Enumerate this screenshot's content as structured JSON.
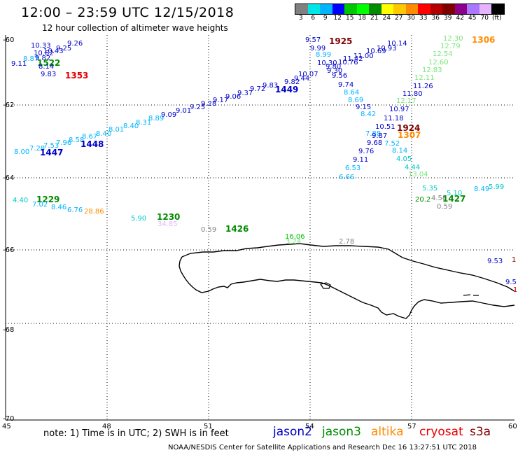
{
  "header": {
    "title": "12:00 – 23:59 UTC 12/15/2018",
    "subtitle": "12 hour collection of altimeter wave heights"
  },
  "legend": {
    "colors": [
      "#808080",
      "#00e6e6",
      "#00b4ff",
      "#0000ff",
      "#00c800",
      "#00ff00",
      "#008c00",
      "#ffff00",
      "#ffc800",
      "#ff8c00",
      "#ff0000",
      "#b40000",
      "#800000",
      "#8c008c",
      "#aa78ff",
      "#e6b4ff",
      "#000000"
    ],
    "labels": [
      "3",
      "6",
      "9",
      "12",
      "15",
      "18",
      "21",
      "24",
      "27",
      "30",
      "33",
      "36",
      "39",
      "42",
      "45",
      "70",
      "(ft)"
    ]
  },
  "axes": {
    "lat_labels": [
      "-60",
      "-62",
      "-64",
      "-66",
      "-68",
      "-70"
    ],
    "lon_labels": [
      "45",
      "48",
      "51",
      "54",
      "57",
      "60"
    ]
  },
  "points": [
    {
      "t": "10.33",
      "c": "#0000c8"
    },
    {
      "t": "9.25",
      "c": "#0000c8"
    },
    {
      "t": "9.26",
      "c": "#0000c8"
    },
    {
      "t": "10.43",
      "c": "#0000c8"
    },
    {
      "t": "10.62",
      "c": "#0000c8"
    },
    {
      "t": "8.87",
      "c": "#00b4ff"
    },
    {
      "t": "9.82",
      "c": "#0000c8"
    },
    {
      "t": "9.11",
      "c": "#0000c8"
    },
    {
      "t": "1522",
      "c": "#008c00"
    },
    {
      "t": "8.14",
      "c": "#0000c8"
    },
    {
      "t": "9.83",
      "c": "#0000c8"
    },
    {
      "t": "1353",
      "c": "#e60000"
    },
    {
      "t": "9.57",
      "c": "#0000c8"
    },
    {
      "t": "1925",
      "c": "#800000"
    },
    {
      "t": "9.99",
      "c": "#0000c8"
    },
    {
      "t": "8.99",
      "c": "#00b4ff"
    },
    {
      "t": "10.14",
      "c": "#0000c8"
    },
    {
      "t": "10.93",
      "c": "#0000c8"
    },
    {
      "t": "10.69",
      "c": "#0000c8"
    },
    {
      "t": "11.00",
      "c": "#0000c8"
    },
    {
      "t": "11.42",
      "c": "#0000c8"
    },
    {
      "t": "10.76",
      "c": "#0000c8"
    },
    {
      "t": "10.30",
      "c": "#0000c8"
    },
    {
      "t": "9.80",
      "c": "#0000c8"
    },
    {
      "t": "9.30",
      "c": "#0000c8"
    },
    {
      "t": "10.07",
      "c": "#0000c8"
    },
    {
      "t": "9.56",
      "c": "#0000c8"
    },
    {
      "t": "9.74",
      "c": "#0000c8"
    },
    {
      "t": "8.64",
      "c": "#00b4ff"
    },
    {
      "t": "8.69",
      "c": "#00b4ff"
    },
    {
      "t": "9.15",
      "c": "#0000c8"
    },
    {
      "t": "8.42",
      "c": "#00b4ff"
    },
    {
      "t": "12.30",
      "c": "#78e678"
    },
    {
      "t": "1306",
      "c": "#ff8c00"
    },
    {
      "t": "12.79",
      "c": "#78e678"
    },
    {
      "t": "12.54",
      "c": "#78e678"
    },
    {
      "t": "12.60",
      "c": "#78e678"
    },
    {
      "t": "12.83",
      "c": "#78e678"
    },
    {
      "t": "12.11",
      "c": "#78e678"
    },
    {
      "t": "11.80",
      "c": "#0000c8"
    },
    {
      "t": "11.26",
      "c": "#0000c8"
    },
    {
      "t": "12.17",
      "c": "#78e678"
    },
    {
      "t": "10.97",
      "c": "#0000c8"
    },
    {
      "t": "11.18",
      "c": "#0000c8"
    },
    {
      "t": "10.51",
      "c": "#0000c8"
    },
    {
      "t": "1924",
      "c": "#800000"
    },
    {
      "t": "1307",
      "c": "#ff8c00"
    },
    {
      "t": "7.88",
      "c": "#00b4ff"
    },
    {
      "t": "9.87",
      "c": "#0000c8"
    },
    {
      "t": "9.68",
      "c": "#0000c8"
    },
    {
      "t": "7.52",
      "c": "#00b4ff"
    },
    {
      "t": "8.14",
      "c": "#00b4ff"
    },
    {
      "t": "9.76",
      "c": "#0000c8"
    },
    {
      "t": "9.11",
      "c": "#0000c8"
    },
    {
      "t": "4.05",
      "c": "#00c8c8"
    },
    {
      "t": "6.53",
      "c": "#00b4ff"
    },
    {
      "t": "4.44",
      "c": "#00c8c8"
    },
    {
      "t": "6.66",
      "c": "#00b4ff"
    },
    {
      "t": "13.04",
      "c": "#78e678"
    },
    {
      "t": "9.44",
      "c": "#0000c8"
    },
    {
      "t": "9.82",
      "c": "#0000c8"
    },
    {
      "t": "1449",
      "c": "#0000c8"
    },
    {
      "t": "9.83",
      "c": "#0000c8"
    },
    {
      "t": "9.72",
      "c": "#0000c8"
    },
    {
      "t": "9.37",
      "c": "#0000c8"
    },
    {
      "t": "9.06",
      "c": "#0000c8"
    },
    {
      "t": "9.17",
      "c": "#0000c8"
    },
    {
      "t": "9.28",
      "c": "#0000c8"
    },
    {
      "t": "9.25",
      "c": "#0000c8"
    },
    {
      "t": "9.01",
      "c": "#0000c8"
    },
    {
      "t": "9.09",
      "c": "#0000c8"
    },
    {
      "t": "8.89",
      "c": "#00b4ff"
    },
    {
      "t": "8.31",
      "c": "#00b4ff"
    },
    {
      "t": "8.40",
      "c": "#00b4ff"
    },
    {
      "t": "8.01",
      "c": "#00b4ff"
    },
    {
      "t": "8.40",
      "c": "#00b4ff"
    },
    {
      "t": "8.67",
      "c": "#00b4ff"
    },
    {
      "t": "8.58",
      "c": "#00b4ff"
    },
    {
      "t": "1448",
      "c": "#0000c8"
    },
    {
      "t": "7.96",
      "c": "#00b4ff"
    },
    {
      "t": "7.53",
      "c": "#00b4ff"
    },
    {
      "t": "7.28",
      "c": "#00b4ff"
    },
    {
      "t": "8.00",
      "c": "#00b4ff"
    },
    {
      "t": "1447",
      "c": "#0000c8"
    },
    {
      "t": "4.40",
      "c": "#00c8c8"
    },
    {
      "t": "1229",
      "c": "#008c00"
    },
    {
      "t": "7.02",
      "c": "#00b4ff"
    },
    {
      "t": "8.46",
      "c": "#00b4ff"
    },
    {
      "t": "6.76",
      "c": "#00b4ff"
    },
    {
      "t": "28.86",
      "c": "#ff8c00"
    },
    {
      "t": "5.90",
      "c": "#00c8c8"
    },
    {
      "t": "1230",
      "c": "#008c00"
    },
    {
      "t": "34.85",
      "c": "#e6b4ff"
    },
    {
      "t": "0.59",
      "c": "#808080"
    },
    {
      "t": "1426",
      "c": "#008c00"
    },
    {
      "t": "16.06",
      "c": "#00c800"
    },
    {
      "t": "3.24",
      "c": "#78e678"
    },
    {
      "t": "2.78",
      "c": "#808080"
    },
    {
      "t": "5.35",
      "c": "#00c8c8"
    },
    {
      "t": "5.10",
      "c": "#00c8c8"
    },
    {
      "t": "8.49",
      "c": "#00b4ff"
    },
    {
      "t": "5.99",
      "c": "#00c8c8"
    },
    {
      "t": "20.2",
      "c": "#008c00"
    },
    {
      "t": "4.56",
      "c": "#808080"
    },
    {
      "t": "1427",
      "c": "#008c00"
    },
    {
      "t": "0.59",
      "c": "#808080"
    },
    {
      "t": "9.53",
      "c": "#0000c8"
    },
    {
      "t": "9.5",
      "c": "#0000c8"
    },
    {
      "t": "1",
      "c": "#800000"
    },
    {
      "t": "1",
      "c": "#e60000"
    }
  ],
  "footer": {
    "note": "note: 1) Time is in UTC; 2) SWH is in feet",
    "satellites": [
      {
        "name": "jason2",
        "color": "#0000c8"
      },
      {
        "name": "jason3",
        "color": "#008c00"
      },
      {
        "name": "altika",
        "color": "#ff8c00"
      },
      {
        "name": "cryosat",
        "color": "#e60000"
      },
      {
        "name": "s3a",
        "color": "#800000"
      }
    ],
    "credit": "NOAA/NESDIS Center for Satellite Applications and Research    Dec 16 13:27:51 UTC 2018"
  }
}
